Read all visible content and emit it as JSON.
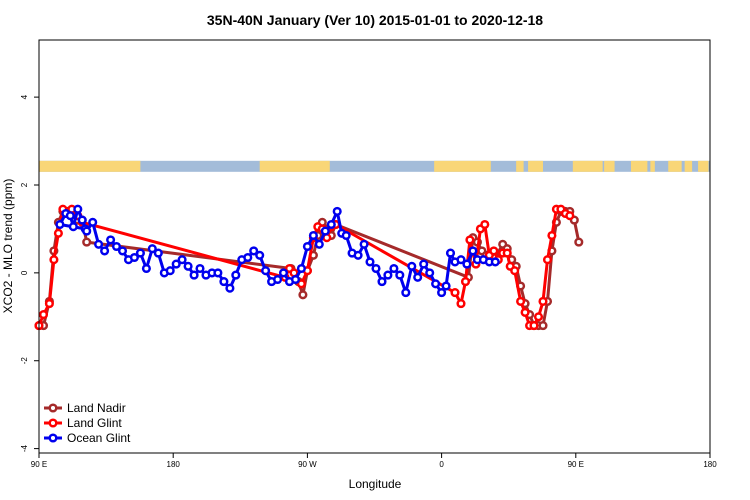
{
  "chart_data": {
    "type": "line",
    "title": "35N-40N January (Ver 10)   2015-01-01 to 2020-12-18",
    "xlabel": "Longitude",
    "ylabel": "XCO2 - MLO trend (ppm)",
    "xlim": [
      90,
      540
    ],
    "ylim": [
      -4.1,
      5.3
    ],
    "x_ticks": [
      {
        "value": 90,
        "label": "90 E"
      },
      {
        "value": 180,
        "label": "180"
      },
      {
        "value": 270,
        "label": "90 W"
      },
      {
        "value": 360,
        "label": "0"
      },
      {
        "value": 450,
        "label": "90 E"
      },
      {
        "value": 540,
        "label": "180"
      }
    ],
    "y_ticks": [
      {
        "value": -4,
        "label": "-4"
      },
      {
        "value": -2,
        "label": "-2"
      },
      {
        "value": 0,
        "label": "0"
      },
      {
        "value": 2,
        "label": "2"
      },
      {
        "value": 4,
        "label": "4"
      }
    ],
    "legend_position": "bottom-left",
    "surface_strip": {
      "y_range": [
        2.3,
        2.55
      ],
      "ocean_color": "#a3bcd9",
      "land_color": "#f9d677",
      "land_spans": [
        [
          90,
          158
        ],
        [
          238,
          285
        ],
        [
          355,
          393
        ],
        [
          410,
          415
        ],
        [
          418,
          428
        ],
        [
          448,
          468
        ],
        [
          469,
          476
        ],
        [
          487,
          498
        ],
        [
          500,
          503
        ],
        [
          512,
          521
        ],
        [
          523,
          528
        ],
        [
          532,
          539
        ]
      ]
    },
    "series": [
      {
        "name": "Land Nadir",
        "color": "#a52a2a",
        "points": [
          [
            90,
            -1.2
          ],
          [
            93,
            -1.2
          ],
          [
            97,
            -0.65
          ],
          [
            100,
            0.5
          ],
          [
            103,
            1.15
          ],
          [
            106,
            1.4
          ],
          [
            109,
            1.4
          ],
          [
            112,
            1.4
          ],
          [
            116,
            1.2
          ],
          [
            119,
            1.2
          ],
          [
            122,
            0.7
          ],
          [
            259,
            0.1
          ],
          [
            264,
            -0.2
          ],
          [
            267,
            -0.5
          ],
          [
            270,
            0.05
          ],
          [
            274,
            0.4
          ],
          [
            277,
            0.85
          ],
          [
            280,
            1.15
          ],
          [
            283,
            1.0
          ],
          [
            286,
            0.85
          ],
          [
            289,
            1.1
          ],
          [
            378,
            -0.1
          ],
          [
            381,
            0.8
          ],
          [
            384,
            0.7
          ],
          [
            387,
            0.5
          ],
          [
            390,
            0.4
          ],
          [
            393,
            0.35
          ],
          [
            396,
            0.35
          ],
          [
            401,
            0.65
          ],
          [
            404,
            0.55
          ],
          [
            407,
            0.3
          ],
          [
            410,
            0.15
          ],
          [
            413,
            -0.3
          ],
          [
            416,
            -0.7
          ],
          [
            419,
            -0.95
          ],
          [
            422,
            -1.2
          ],
          [
            425,
            -1.2
          ],
          [
            428,
            -1.2
          ],
          [
            431,
            -0.65
          ],
          [
            434,
            0.5
          ],
          [
            437,
            1.15
          ],
          [
            440,
            1.4
          ],
          [
            443,
            1.4
          ],
          [
            446,
            1.4
          ],
          [
            449,
            1.2
          ],
          [
            452,
            0.7
          ]
        ]
      },
      {
        "name": "Land Glint",
        "color": "#ff0000",
        "points": [
          [
            90,
            -1.2
          ],
          [
            93,
            -0.95
          ],
          [
            97,
            -0.7
          ],
          [
            100,
            0.3
          ],
          [
            103,
            0.9
          ],
          [
            106,
            1.45
          ],
          [
            109,
            1.35
          ],
          [
            112,
            1.45
          ],
          [
            116,
            1.3
          ],
          [
            119,
            1.15
          ],
          [
            255,
            -0.1
          ],
          [
            258,
            0.1
          ],
          [
            261,
            0.0
          ],
          [
            266,
            -0.25
          ],
          [
            270,
            0.05
          ],
          [
            274,
            0.8
          ],
          [
            277,
            1.05
          ],
          [
            280,
            1.0
          ],
          [
            283,
            0.8
          ],
          [
            286,
            1.05
          ],
          [
            289,
            1.1
          ],
          [
            369,
            -0.45
          ],
          [
            373,
            -0.7
          ],
          [
            376,
            -0.2
          ],
          [
            379,
            0.75
          ],
          [
            383,
            0.2
          ],
          [
            386,
            1.0
          ],
          [
            389,
            1.1
          ],
          [
            392,
            0.4
          ],
          [
            395,
            0.5
          ],
          [
            398,
            0.3
          ],
          [
            401,
            0.45
          ],
          [
            404,
            0.45
          ],
          [
            406,
            0.15
          ],
          [
            409,
            0.05
          ],
          [
            413,
            -0.65
          ],
          [
            416,
            -0.9
          ],
          [
            419,
            -1.2
          ],
          [
            422,
            -1.2
          ],
          [
            425,
            -1.0
          ],
          [
            428,
            -0.65
          ],
          [
            431,
            0.3
          ],
          [
            434,
            0.85
          ],
          [
            437,
            1.45
          ],
          [
            440,
            1.45
          ],
          [
            443,
            1.35
          ],
          [
            446,
            1.3
          ]
        ]
      },
      {
        "name": "Ocean Glint",
        "color": "#0000ee",
        "points": [
          [
            121,
            1.0
          ],
          [
            104,
            1.1
          ],
          [
            108,
            1.35
          ],
          [
            111,
            1.3
          ],
          [
            113,
            1.05
          ],
          [
            116,
            1.45
          ],
          [
            119,
            1.2
          ],
          [
            122,
            0.95
          ],
          [
            126,
            1.15
          ],
          [
            130,
            0.65
          ],
          [
            134,
            0.5
          ],
          [
            138,
            0.75
          ],
          [
            142,
            0.6
          ],
          [
            146,
            0.5
          ],
          [
            150,
            0.3
          ],
          [
            154,
            0.35
          ],
          [
            158,
            0.45
          ],
          [
            162,
            0.1
          ],
          [
            166,
            0.55
          ],
          [
            170,
            0.45
          ],
          [
            174,
            0.0
          ],
          [
            178,
            0.05
          ],
          [
            182,
            0.2
          ],
          [
            186,
            0.3
          ],
          [
            190,
            0.15
          ],
          [
            194,
            -0.05
          ],
          [
            198,
            0.1
          ],
          [
            202,
            -0.05
          ],
          [
            206,
            0.0
          ],
          [
            210,
            0.0
          ],
          [
            214,
            -0.2
          ],
          [
            218,
            -0.35
          ],
          [
            222,
            -0.05
          ],
          [
            226,
            0.3
          ],
          [
            230,
            0.35
          ],
          [
            234,
            0.5
          ],
          [
            238,
            0.4
          ],
          [
            242,
            0.05
          ],
          [
            246,
            -0.2
          ],
          [
            250,
            -0.15
          ],
          [
            254,
            0.0
          ],
          [
            258,
            -0.2
          ],
          [
            262,
            -0.15
          ],
          [
            266,
            0.1
          ],
          [
            270,
            0.6
          ],
          [
            274,
            0.85
          ],
          [
            278,
            0.65
          ],
          [
            282,
            0.95
          ],
          [
            286,
            1.1
          ],
          [
            290,
            1.4
          ],
          [
            293,
            0.9
          ],
          [
            296,
            0.85
          ],
          [
            300,
            0.45
          ],
          [
            304,
            0.4
          ],
          [
            308,
            0.65
          ],
          [
            312,
            0.25
          ],
          [
            316,
            0.1
          ],
          [
            320,
            -0.2
          ],
          [
            324,
            -0.05
          ],
          [
            328,
            0.1
          ],
          [
            332,
            -0.05
          ],
          [
            336,
            -0.45
          ],
          [
            340,
            0.15
          ],
          [
            344,
            -0.1
          ],
          [
            348,
            0.2
          ],
          [
            352,
            0.0
          ],
          [
            356,
            -0.25
          ],
          [
            360,
            -0.45
          ],
          [
            363,
            -0.3
          ],
          [
            366,
            0.45
          ],
          [
            369,
            0.25
          ],
          [
            373,
            0.3
          ],
          [
            377,
            0.2
          ],
          [
            381,
            0.5
          ],
          [
            384,
            0.3
          ],
          [
            388,
            0.3
          ],
          [
            392,
            0.25
          ],
          [
            396,
            0.25
          ]
        ]
      }
    ]
  }
}
